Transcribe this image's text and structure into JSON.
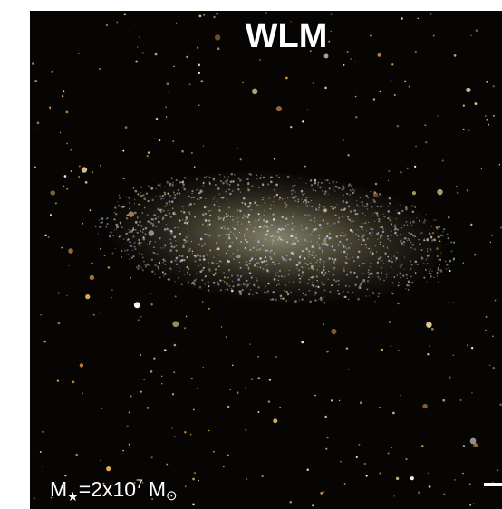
{
  "title": "WLM",
  "mass_label": {
    "symbol": "M",
    "symbol_subscript": "★",
    "value_text": "=2x10",
    "exponent": "7",
    "unit": "M",
    "unit_subscript": "⊙"
  }
}
